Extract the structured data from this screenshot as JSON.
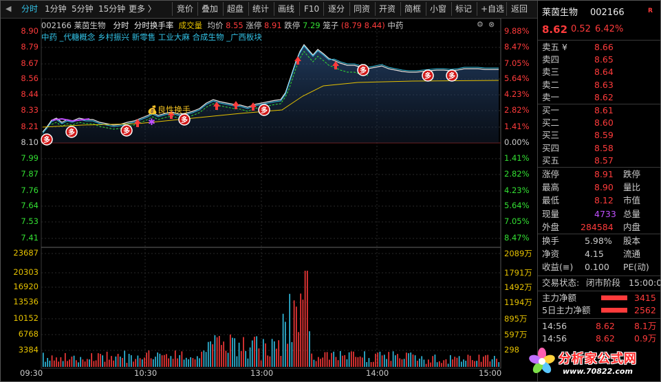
{
  "toolbar": {
    "left_tabs": [
      {
        "label": "分时",
        "active": true
      },
      {
        "label": "1分钟"
      },
      {
        "label": "5分钟"
      },
      {
        "label": "15分钟"
      },
      {
        "label": "更多 〉"
      }
    ],
    "buttons": [
      "竞价",
      "叠加",
      "超盘",
      "统计",
      "画线",
      "F10",
      "逐分",
      "同资",
      "开资",
      "简框",
      "小窗",
      "标记",
      "+自选",
      "返回"
    ]
  },
  "stock_info": {
    "code": "002166",
    "name": "莱茵生物",
    "mode": "分时",
    "mode2": "分时换手率",
    "mode3": "成交量",
    "avg_label": "均价",
    "avg_value": "8.55",
    "limit_up_label": "涨停",
    "limit_up_value": "8.91",
    "limit_down_label": "跌停",
    "limit_down_value": "7.29",
    "ladder_label": "笼子",
    "ladder_value": "(8.79 8.44)",
    "sector": "中药"
  },
  "concepts": [
    "中药",
    "_代糖概念",
    "乡村振兴",
    "新零售",
    "工业大麻",
    "合成生物",
    "_广西板块"
  ],
  "price_axis": {
    "left": [
      "8.90",
      "8.79",
      "8.67",
      "8.56",
      "8.44",
      "8.33",
      "8.21",
      "8.10",
      "7.99",
      "7.87",
      "7.76",
      "7.64",
      "7.53",
      "7.41"
    ],
    "right": [
      "9.88%",
      "8.47%",
      "7.05%",
      "5.64%",
      "4.23%",
      "2.82%",
      "1.41%",
      "0.00%",
      "1.41%",
      "2.82%",
      "4.23%",
      "5.64%",
      "7.05%",
      "8.47%"
    ]
  },
  "volume_axis": {
    "left": [
      "23687",
      "20303",
      "16920",
      "13536",
      "10152",
      "6768",
      "3384"
    ],
    "right": [
      "2089万",
      "1791万",
      "1492万",
      "1194万",
      "895万",
      "597万",
      "298"
    ]
  },
  "time_axis": [
    "09:30",
    "10:30",
    "13:00",
    "14:00",
    "15:00"
  ],
  "annotation": {
    "label": "良性换手",
    "icon": "money-bag-icon"
  },
  "signal_marks": [
    "多",
    "多",
    "多",
    "多",
    "多",
    "多",
    "多",
    "多",
    "多"
  ],
  "right_panel": {
    "name": "莱茵生物",
    "code": "002166",
    "r_badge": "R",
    "price": "8.62",
    "change": "0.52",
    "change_pct": "6.42%",
    "asks": [
      {
        "label": "卖五 ¥",
        "price": "8.66"
      },
      {
        "label": "卖四",
        "price": "8.65"
      },
      {
        "label": "卖三",
        "price": "8.64"
      },
      {
        "label": "卖二",
        "price": "8.63"
      },
      {
        "label": "卖一",
        "price": "8.62"
      }
    ],
    "bids": [
      {
        "label": "买一",
        "price": "8.61"
      },
      {
        "label": "买二",
        "price": "8.60"
      },
      {
        "label": "买三",
        "price": "8.59"
      },
      {
        "label": "买四",
        "price": "8.58"
      },
      {
        "label": "买五",
        "price": "8.57"
      }
    ],
    "stats": [
      {
        "l1": "涨停",
        "v1": "8.91",
        "l2": "跌停"
      },
      {
        "l1": "最高",
        "v1": "8.90",
        "l2": "量比"
      },
      {
        "l1": "最低",
        "v1": "8.12",
        "l2": "市值"
      },
      {
        "l1": "现量",
        "v1": "4733",
        "l2": "总量"
      },
      {
        "l1": "外盘",
        "v1": "284584",
        "l2": "内盘"
      }
    ],
    "stats2": [
      {
        "l1": "换手",
        "v1": "5.98%",
        "l2": "股本"
      },
      {
        "l1": "净资",
        "v1": "4.15",
        "l2": "流通"
      },
      {
        "l1": "收益(≡)",
        "v1": "0.100",
        "l2": "PE(动)"
      }
    ],
    "trade_status_label": "交易状态:",
    "trade_status_value": "闭市阶段",
    "trade_status_time": "15:00:0",
    "main_flow_label": "主力净额",
    "main_flow_value": "3415",
    "main_flow5_label": "5日主力净额",
    "main_flow5_value": "2562",
    "ticks": [
      {
        "time": "14:56",
        "price": "8.62",
        "vol": "8.1万"
      },
      {
        "time": "14:56",
        "price": "8.62",
        "vol": "0.9万"
      }
    ]
  },
  "watermark": {
    "text": "分析家公式网",
    "url": "www.70822.com"
  },
  "colors": {
    "up": "#ff3b3b",
    "down": "#33e033",
    "accent": "#33c2e6",
    "yellow": "#e6c200",
    "purple": "#c050ff"
  }
}
